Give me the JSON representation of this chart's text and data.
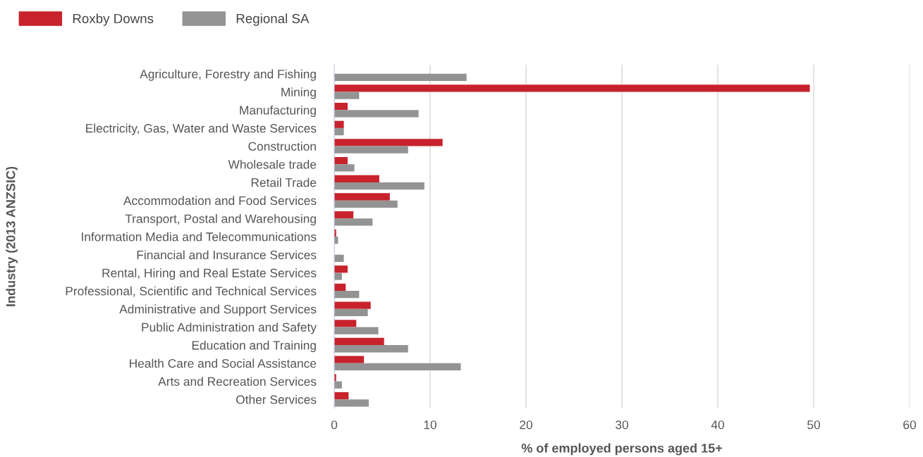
{
  "chart_data": {
    "type": "bar",
    "orientation": "horizontal",
    "xlabel": "% of employed persons aged 15+",
    "ylabel": "Industry (2013 ANZSIC)",
    "categories": [
      "Agriculture, Forestry and Fishing",
      "Mining",
      "Manufacturing",
      "Electricity, Gas, Water and Waste Services",
      "Construction",
      "Wholesale trade",
      "Retail Trade",
      "Accommodation and Food Services",
      "Transport, Postal and Warehousing",
      "Information Media and Telecommunications",
      "Financial and Insurance Services",
      "Rental, Hiring and Real Estate Services",
      "Professional, Scientific and Technical Services",
      "Administrative and Support Services",
      "Public Administration and Safety",
      "Education and Training",
      "Health Care and Social Assistance",
      "Arts and Recreation Services",
      "Other Services"
    ],
    "series": [
      {
        "name": "Roxby Downs",
        "color": "#c8232c",
        "values": [
          0,
          49.6,
          1.4,
          1.0,
          11.3,
          1.4,
          4.7,
          5.8,
          2.0,
          0.2,
          0,
          1.4,
          1.2,
          3.8,
          2.3,
          5.2,
          3.1,
          0.2,
          1.5
        ]
      },
      {
        "name": "Regional SA",
        "color": "#939393",
        "values": [
          13.8,
          2.6,
          8.8,
          1.0,
          7.7,
          2.1,
          9.4,
          6.6,
          4.0,
          0.4,
          1.0,
          0.8,
          2.6,
          3.5,
          4.6,
          7.7,
          13.2,
          0.8,
          3.6
        ]
      }
    ],
    "xlim": [
      0,
      60
    ],
    "xticks": [
      0,
      10,
      20,
      30,
      40,
      50,
      60
    ],
    "grid": "x",
    "legend": "top left"
  }
}
